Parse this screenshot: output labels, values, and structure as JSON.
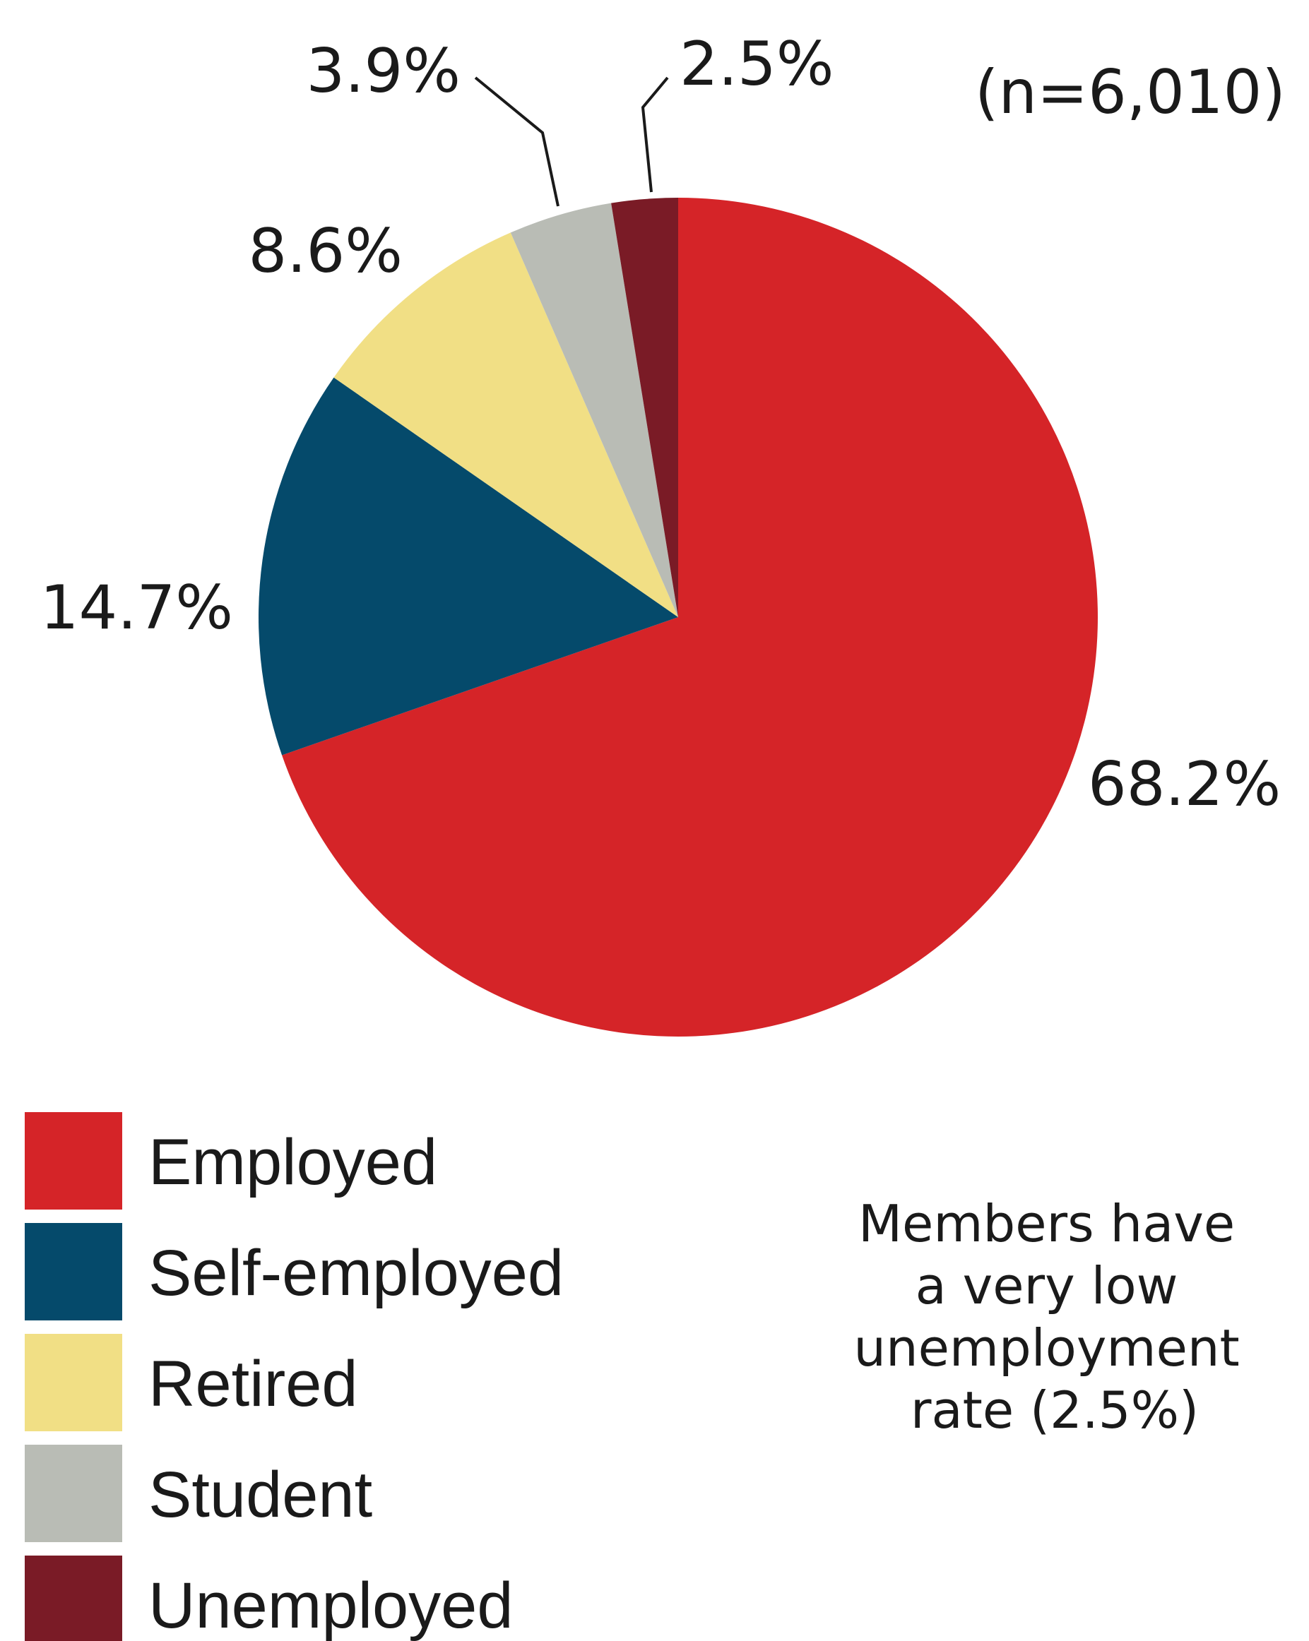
{
  "chart_data": {
    "type": "pie",
    "sample_size": "(n=6,010)",
    "start_angle_deg": 0,
    "direction": "clockwise",
    "slices": [
      {
        "label": "Employed",
        "value": 68.2,
        "value_label": "68.2%",
        "color": "#D52428"
      },
      {
        "label": "Self-employed",
        "value": 14.7,
        "value_label": "14.7%",
        "color": "#054A6B"
      },
      {
        "label": "Retired",
        "value": 8.6,
        "value_label": "8.6%",
        "color": "#F1DF85"
      },
      {
        "label": "Student",
        "value": 3.9,
        "value_label": "3.9%",
        "color": "#B9BCB5"
      },
      {
        "label": "Unemployed",
        "value": 2.5,
        "value_label": "2.5%",
        "color": "#7A1B26"
      }
    ],
    "legend_position": "bottom-left",
    "annotation_lines": [
      "Members have",
      "a very low",
      "unemployment",
      "rate (2.5%)"
    ]
  }
}
